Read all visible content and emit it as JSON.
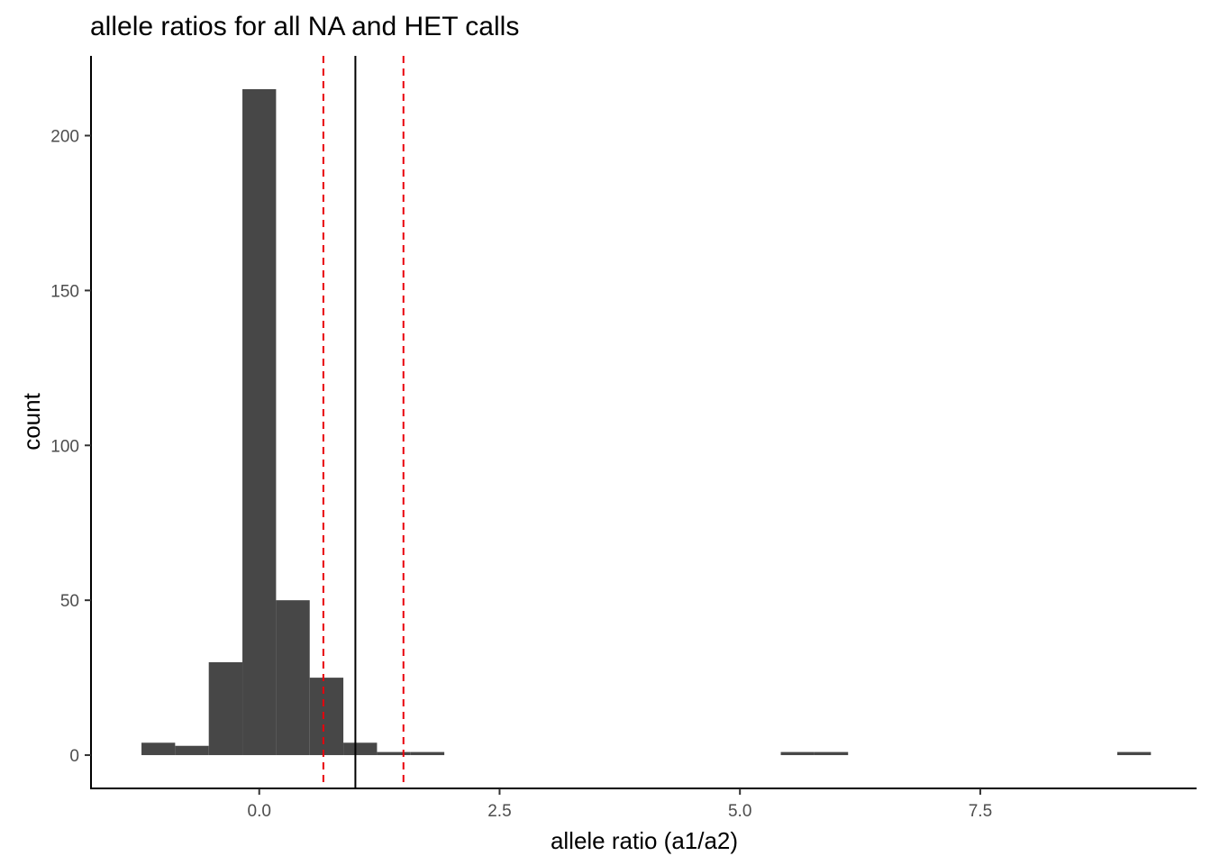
{
  "chart_data": {
    "type": "bar",
    "title": "allele ratios for all NA and HET calls",
    "xlabel": "allele ratio (a1/a2)",
    "ylabel": "count",
    "xlim": [
      -1.75,
      9.75
    ],
    "ylim": [
      -10.75,
      225.75
    ],
    "x_ticks": [
      {
        "value": 0,
        "label": "0.0"
      },
      {
        "value": 2.5,
        "label": "2.5"
      },
      {
        "value": 5,
        "label": "5.0"
      },
      {
        "value": 7.5,
        "label": "7.5"
      }
    ],
    "y_ticks": [
      {
        "value": 0,
        "label": "0"
      },
      {
        "value": 50,
        "label": "50"
      },
      {
        "value": 100,
        "label": "100"
      },
      {
        "value": 150,
        "label": "150"
      },
      {
        "value": 200,
        "label": "200"
      }
    ],
    "bin_width": 0.35,
    "bins": [
      {
        "center": -1.05,
        "count": 4
      },
      {
        "center": -0.7,
        "count": 3
      },
      {
        "center": -0.35,
        "count": 30
      },
      {
        "center": 0.0,
        "count": 215
      },
      {
        "center": 0.35,
        "count": 50
      },
      {
        "center": 0.7,
        "count": 25
      },
      {
        "center": 1.05,
        "count": 4
      },
      {
        "center": 1.4,
        "count": 1
      },
      {
        "center": 1.75,
        "count": 1
      },
      {
        "center": 5.6,
        "count": 1
      },
      {
        "center": 5.95,
        "count": 1
      },
      {
        "center": 9.1,
        "count": 1
      }
    ],
    "bar_color": "#474747",
    "reference_lines": [
      {
        "x": 1.0,
        "style": "solid",
        "color": "#000000"
      },
      {
        "x": 0.667,
        "style": "dashed",
        "color": "#e8000b"
      },
      {
        "x": 1.5,
        "style": "dashed",
        "color": "#e8000b"
      }
    ]
  }
}
